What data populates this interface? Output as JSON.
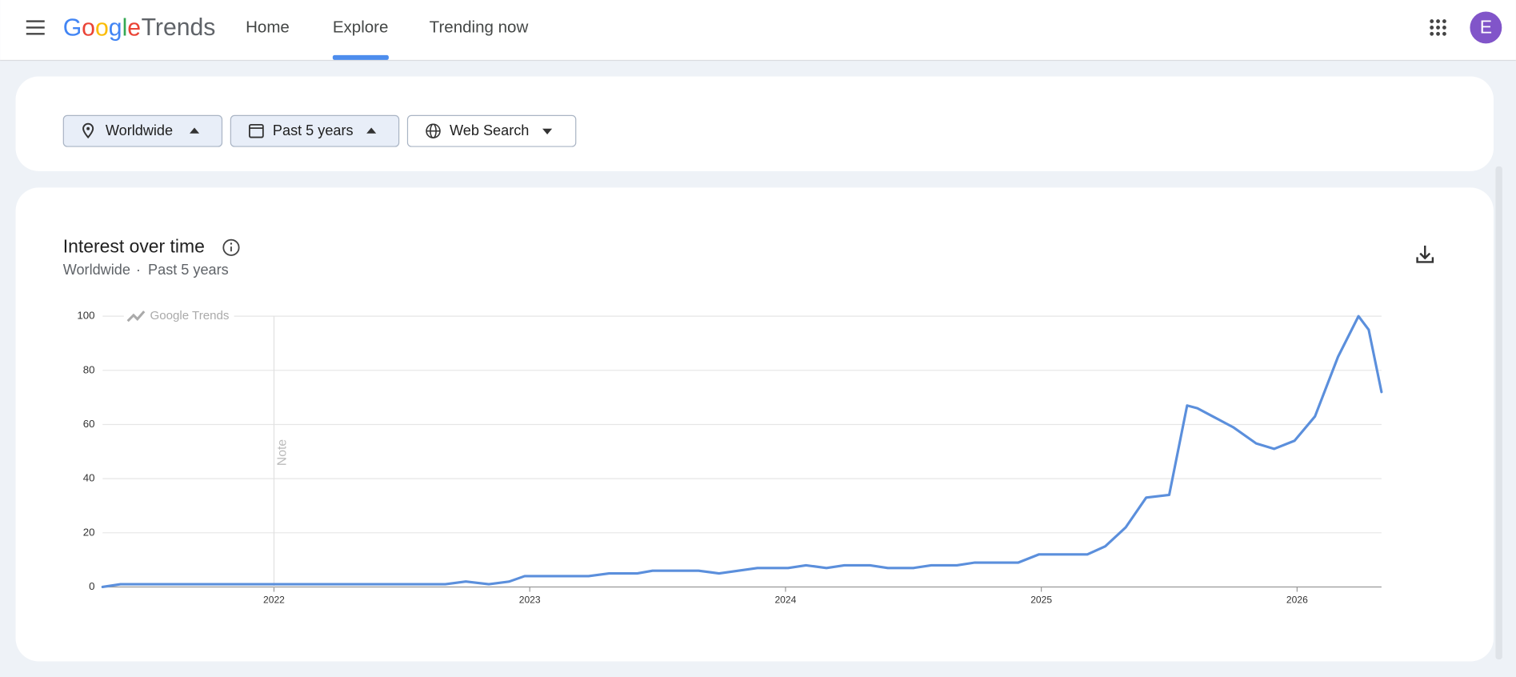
{
  "header": {
    "logo_google": "Google",
    "logo_trends": "Trends",
    "nav": [
      "Home",
      "Explore",
      "Trending now"
    ],
    "avatar": "E"
  },
  "filters": [
    "Worldwide",
    "Past 5 years",
    "Web Search"
  ],
  "card": {
    "title": "Interest over time",
    "subtitle_location": "Worldwide",
    "subtitle_separator": "·",
    "subtitle_period": "Past 5 years"
  },
  "chart_data": {
    "type": "line",
    "watermark": "Google Trends",
    "annotation": "Note",
    "annotation_x": 2022,
    "color": "#5b8fdc",
    "x": [
      2021.33,
      2021.4,
      2022.67,
      2022.75,
      2022.84,
      2022.92,
      2022.98,
      2023.23,
      2023.31,
      2023.42,
      2023.48,
      2023.66,
      2023.74,
      2023.89,
      2024.01,
      2024.08,
      2024.16,
      2024.23,
      2024.33,
      2024.4,
      2024.5,
      2024.57,
      2024.67,
      2024.74,
      2024.91,
      2024.99,
      2025.18,
      2025.25,
      2025.33,
      2025.41,
      2025.5,
      2025.57,
      2025.61,
      2025.67,
      2025.75,
      2025.84,
      2025.91,
      2025.99,
      2026.07,
      2026.16,
      2026.24,
      2026.28,
      2026.33
    ],
    "values": [
      0,
      1,
      1,
      2,
      1,
      2,
      4,
      4,
      5,
      5,
      6,
      6,
      5,
      7,
      7,
      8,
      7,
      8,
      8,
      7,
      7,
      8,
      8,
      9,
      9,
      12,
      12,
      15,
      22,
      33,
      34,
      67,
      66,
      63,
      59,
      53,
      51,
      54,
      63,
      85,
      100,
      95,
      72
    ],
    "xlim": [
      2021.33,
      2026.33
    ],
    "xticks": [
      2022,
      2023,
      2024,
      2025,
      2026
    ],
    "ylim": [
      0,
      100
    ],
    "yticks": [
      0,
      20,
      40,
      60,
      80,
      100
    ],
    "grid": true
  }
}
